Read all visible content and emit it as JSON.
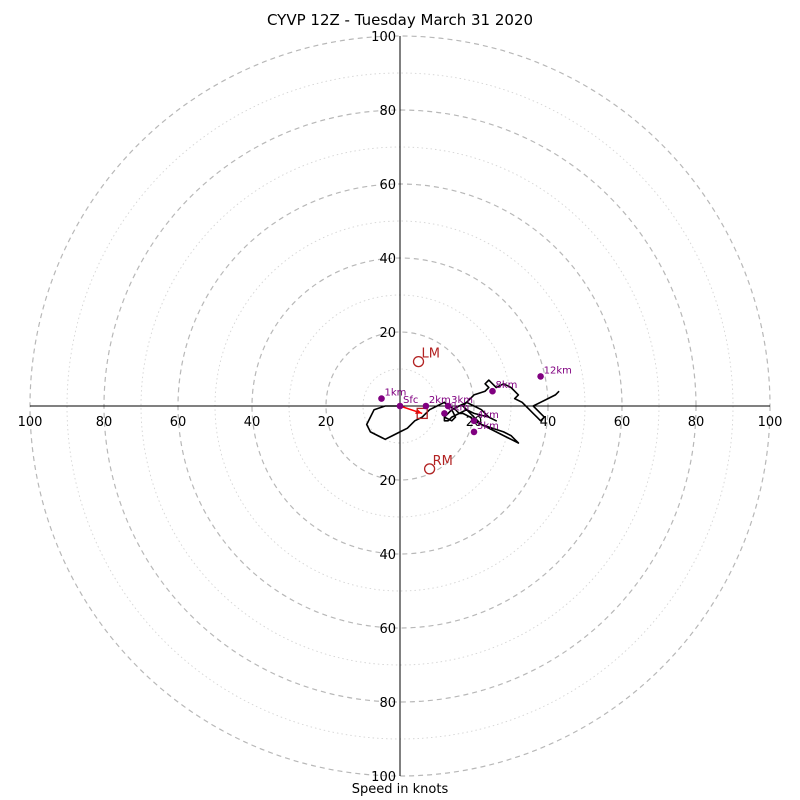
{
  "chart_data": {
    "type": "hodograph",
    "title": "CYVP 12Z - Tuesday March 31 2020",
    "xlabel": "Speed in knots",
    "rlim": [
      0,
      100
    ],
    "ring_labels": [
      "20",
      "40",
      "60",
      "80",
      "100"
    ],
    "colors": {
      "trace": "#000000",
      "height_marker": "#800080",
      "storm_motion": "#b22222",
      "shear_vector": "#ff0000",
      "grid": "#bbbbbb"
    },
    "trace": {
      "u": [
        0,
        -4,
        -7,
        -8,
        -9,
        -8,
        -6,
        -4,
        -2,
        0,
        2,
        4,
        6,
        8,
        10,
        12,
        13,
        15,
        16,
        14,
        13,
        12,
        12,
        13,
        14,
        13,
        12,
        14,
        15,
        14,
        16,
        18,
        20,
        22,
        23,
        24,
        26,
        24,
        20,
        18,
        16,
        17,
        19,
        20,
        22,
        25,
        28,
        30,
        31,
        32,
        30,
        28,
        26,
        24,
        22,
        20,
        18,
        17,
        18,
        20,
        23,
        24,
        23,
        24,
        25,
        26,
        28,
        30,
        31,
        32,
        31,
        33,
        34,
        35,
        36,
        37,
        38,
        39,
        38,
        37,
        36,
        38,
        40,
        42,
        43
      ],
      "v": [
        0,
        0,
        -1,
        -3,
        -5,
        -7,
        -8,
        -9,
        -8,
        -7,
        -6,
        -4,
        -3,
        -1,
        0,
        1,
        0,
        -1,
        -2,
        -3,
        -4,
        -4,
        -3,
        -2,
        -1,
        -2,
        -3,
        -4,
        -3,
        -1,
        0,
        1,
        0,
        -1,
        -2,
        -3,
        -4,
        -3,
        -2,
        -1,
        -2,
        -2,
        -3,
        -4,
        -5,
        -6,
        -7,
        -8,
        -9,
        -10,
        -9,
        -8,
        -7,
        -6,
        -5,
        -3,
        -1,
        0,
        1,
        3,
        4,
        5,
        6,
        7,
        6,
        5,
        6,
        5,
        4,
        3,
        2,
        1,
        0,
        -1,
        -2,
        -3,
        -4,
        -3,
        -2,
        -1,
        0,
        1,
        2,
        3,
        4
      ]
    },
    "height_markers": [
      {
        "label": "Sfc",
        "u": 0,
        "v": 0
      },
      {
        "label": "1km",
        "u": -5,
        "v": 2
      },
      {
        "label": "2km",
        "u": 7,
        "v": 0
      },
      {
        "label": "3km",
        "u": 13,
        "v": 0
      },
      {
        "label": "4km",
        "u": 20,
        "v": -4
      },
      {
        "label": "5km",
        "u": 20,
        "v": -7
      },
      {
        "label": "6km",
        "u": 12,
        "v": -2
      },
      {
        "label": "8km",
        "u": 25,
        "v": 4
      },
      {
        "label": "12km",
        "u": 38,
        "v": 8
      }
    ],
    "storm_motion": [
      {
        "label": "LM",
        "u": 5,
        "v": 12
      },
      {
        "label": "RM",
        "u": 8,
        "v": -17
      }
    ],
    "mean_wind": {
      "u": 6,
      "v": -2
    },
    "shear_vector": {
      "u0": 0,
      "v0": 0,
      "u1": 6,
      "v1": -2
    }
  }
}
